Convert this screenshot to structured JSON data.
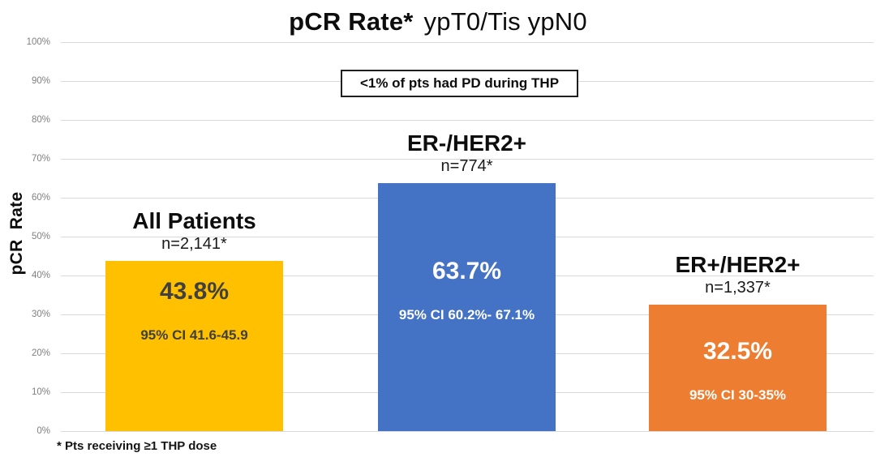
{
  "title": {
    "bold_part": "pCR Rate*",
    "regular_part": "ypT0/Tis ypN0"
  },
  "annotation_box": "<1% of pts had PD during THP",
  "footnote": "* Pts receiving ≥1 THP dose",
  "colors": {
    "gold": "#FFC000",
    "blue": "#4472C4",
    "orange": "#ED7D31",
    "gridline": "#D9D9D9",
    "tick_label": "#808080",
    "dark_value_text": "#404040",
    "white_value_text": "#FFFFFF"
  },
  "chart_data": {
    "type": "bar",
    "title": "pCR Rate* ypT0/Tis ypN0",
    "xlabel": "",
    "ylabel": "pCR Rate",
    "ylim": [
      0,
      100
    ],
    "grid": "horizontal",
    "legend": "none",
    "yticks": [
      "100%",
      "90%",
      "80%",
      "70%",
      "60%",
      "50%",
      "40%",
      "30%",
      "20%",
      "10%",
      "0%"
    ],
    "categories": [
      "All Patients",
      "ER-/HER2+",
      "ER+/HER2+"
    ],
    "values": [
      43.8,
      63.7,
      32.5
    ],
    "bars": [
      {
        "category": "All Patients",
        "n_label": "n=2,141*",
        "value": 43.8,
        "value_label": "43.8%",
        "ci_label": "95% CI 41.6-45.9",
        "color": "#FFC000",
        "label_color": "#404040"
      },
      {
        "category": "ER-/HER2+",
        "n_label": "n=774*",
        "value": 63.7,
        "value_label": "63.7%",
        "ci_label": "95% CI 60.2%- 67.1%",
        "color": "#4472C4",
        "label_color": "#FFFFFF"
      },
      {
        "category": "ER+/HER2+",
        "n_label": "n=1,337*",
        "value": 32.5,
        "value_label": "32.5%",
        "ci_label": "95% CI 30-35%",
        "color": "#ED7D31",
        "label_color": "#FFFFFF"
      }
    ]
  }
}
